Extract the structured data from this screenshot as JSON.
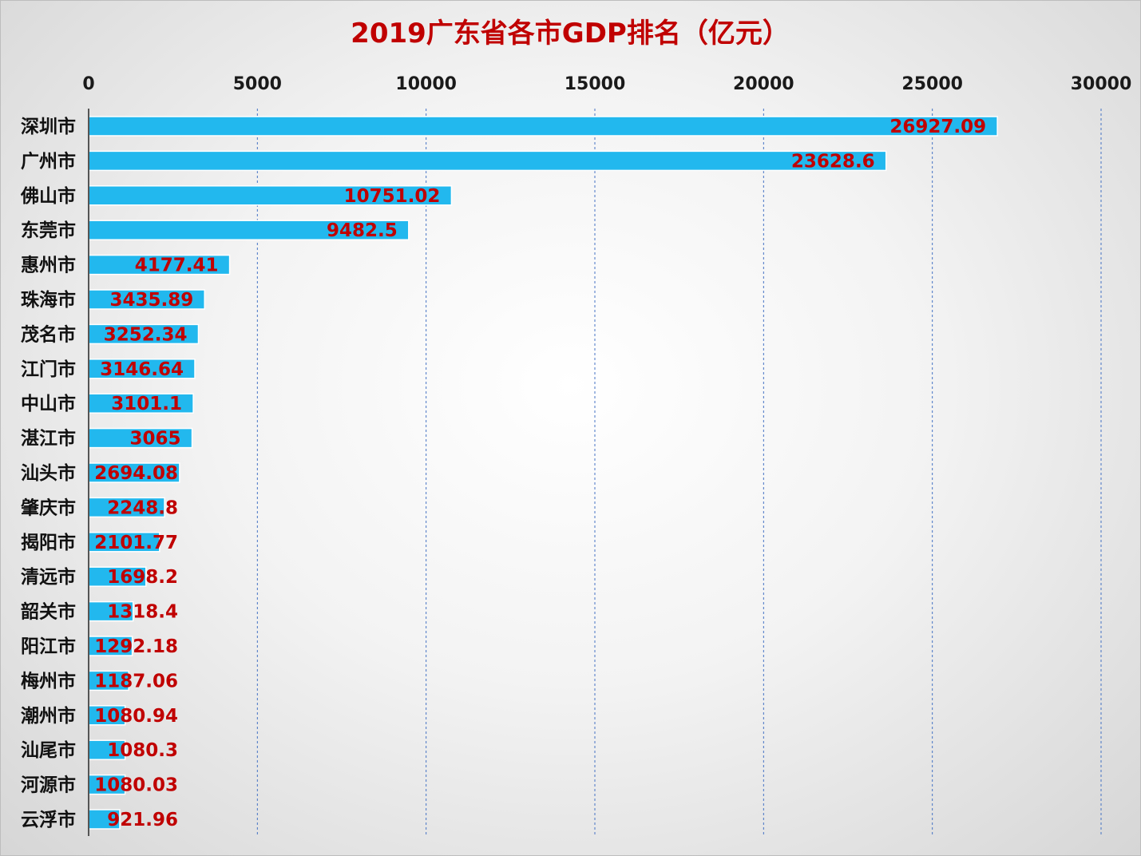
{
  "chart_data": {
    "type": "bar",
    "orientation": "horizontal",
    "title": "2019广东省各市GDP排名（亿元）",
    "xlim": [
      0,
      30000
    ],
    "xticks": [
      "0",
      "5000",
      "10000",
      "15000",
      "20000",
      "25000",
      "30000"
    ],
    "xtick_values": [
      0,
      5000,
      10000,
      15000,
      20000,
      25000,
      30000
    ],
    "x_axis_position": "top",
    "grid": "vertical dashed",
    "legend": "none",
    "categories": [
      "深圳市",
      "广州市",
      "佛山市",
      "东莞市",
      "惠州市",
      "珠海市",
      "茂名市",
      "江门市",
      "中山市",
      "湛江市",
      "汕头市",
      "肇庆市",
      "揭阳市",
      "清远市",
      "韶关市",
      "阳江市",
      "梅州市",
      "潮州市",
      "汕尾市",
      "河源市",
      "云浮市"
    ],
    "values": [
      26927.09,
      23628.6,
      10751.02,
      9482.5,
      4177.41,
      3435.89,
      3252.34,
      3146.64,
      3101.1,
      3065,
      2694.08,
      2248.8,
      2101.77,
      1698.2,
      1318.4,
      1292.18,
      1187.06,
      1080.94,
      1080.3,
      1080.03,
      921.96
    ],
    "labels": [
      "26927.09",
      "23628.6",
      "10751.02",
      "9482.5",
      "4177.41",
      "3435.89",
      "3252.34",
      "3146.64",
      "3101.1",
      "3065",
      "2694.08",
      "2248.8",
      "2101.77",
      "1698.2",
      "1318.4",
      "1292.18",
      "1187.06",
      "1080.94",
      "1080.3",
      "1080.03",
      "921.96"
    ]
  },
  "colors": {
    "bar": "#22b8ee",
    "bar_outline": "#ffffff",
    "title": "#c00000",
    "value_label": "#c00000",
    "gridline": "#4472c4",
    "axis": "#555555"
  }
}
